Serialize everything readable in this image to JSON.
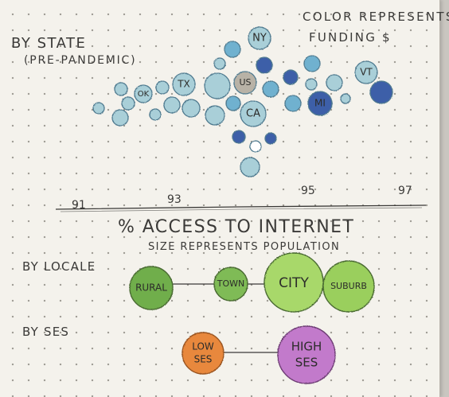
{
  "title_line1": "BY STATE",
  "title_line2": "(PRE-PANDEMIC)",
  "legend_color_line1": "COLOR REPRESENTS",
  "legend_color_line2": "FUNDING $",
  "axis_title": "% ACCESS TO INTERNET",
  "size_note": "SIZE REPRESENTS POPULATION",
  "locale_title": "BY LOCALE",
  "ses_title": "BY SES",
  "colors": {
    "light_blue": "#a9cfd8",
    "mid_blue": "#6fb1cf",
    "dark_blue": "#3d5ea8",
    "grey": "#b8b2a6",
    "green_dark": "#6fae4c",
    "green_light": "#a8d86a",
    "orange": "#e8883c",
    "purple": "#c27acb",
    "ink": "#3b3a38"
  },
  "chart_data": {
    "type": "scatter",
    "xlabel": "% ACCESS TO INTERNET",
    "x_ticks": [
      "91",
      "93",
      "95",
      "97"
    ],
    "xlim": [
      91,
      97
    ],
    "color_meaning": "funding $",
    "size_meaning": "population",
    "labeled_points": [
      {
        "label": "NY",
        "x": 94.6,
        "color": "light_blue"
      },
      {
        "label": "TX",
        "x": 93.2,
        "color": "light_blue"
      },
      {
        "label": "OK",
        "x": 92.1,
        "color": "light_blue"
      },
      {
        "label": "US",
        "x": 94.3,
        "color": "grey"
      },
      {
        "label": "CA",
        "x": 94.4,
        "color": "light_blue"
      },
      {
        "label": "VT",
        "x": 96.5,
        "color": "light_blue"
      },
      {
        "label": "MI",
        "x": 96.1,
        "color": "dark_blue"
      }
    ]
  },
  "locale_nodes": [
    "RURAL",
    "TOWN",
    "CITY",
    "SUBURB"
  ],
  "ses_nodes": [
    {
      "line1": "LOW",
      "line2": "SES"
    },
    {
      "line1": "HIGH",
      "line2": "SES"
    }
  ]
}
